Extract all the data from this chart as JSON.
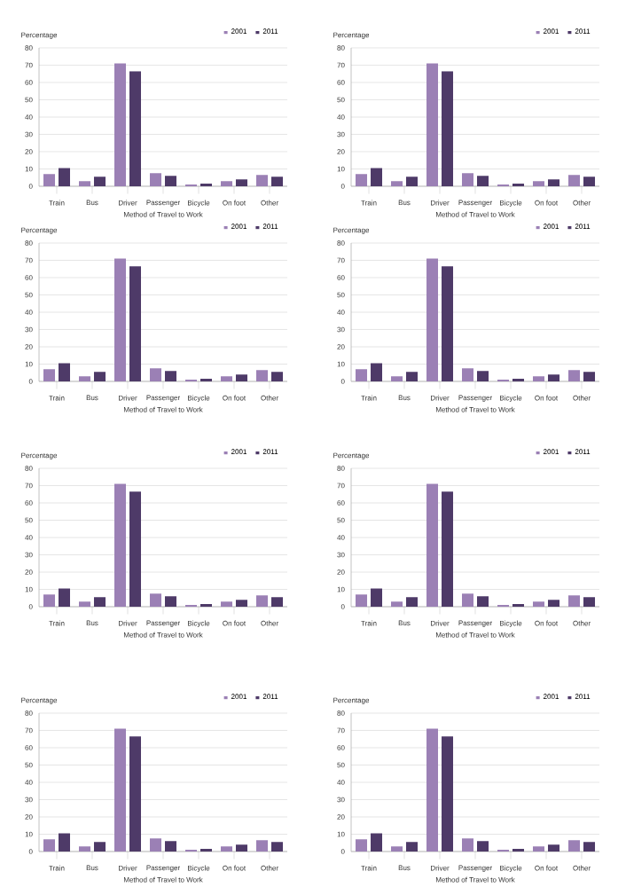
{
  "chart_data": [
    {
      "type": "bar",
      "ylabel": "Percentage",
      "xlabel": "Method of Travel to Work",
      "categories": [
        "Train",
        "Bus",
        "Driver",
        "Passenger",
        "Bicycle",
        "On foot",
        "Other"
      ],
      "series": [
        {
          "name": "2001",
          "color": "#9b80b5",
          "values": [
            7,
            3,
            71,
            7.5,
            1,
            3,
            6.5
          ]
        },
        {
          "name": "2011",
          "color": "#4e3a68",
          "values": [
            10.5,
            5.5,
            66.5,
            6,
            1.5,
            4,
            5.5
          ]
        }
      ],
      "ylim": [
        0,
        80
      ],
      "yticks": [
        0,
        10,
        20,
        30,
        40,
        50,
        60,
        70,
        80
      ],
      "grid": "y",
      "legend": "top right"
    },
    {
      "type": "bar",
      "ylabel": "Percentage",
      "xlabel": "Method of Travel to Work",
      "categories": [
        "Train",
        "Bus",
        "Driver",
        "Passenger",
        "Bicycle",
        "On foot",
        "Other"
      ],
      "series": [
        {
          "name": "2001",
          "color": "#9b80b5",
          "values": [
            7,
            3,
            71,
            7.5,
            1,
            3,
            6.5
          ]
        },
        {
          "name": "2011",
          "color": "#4e3a68",
          "values": [
            10.5,
            5.5,
            66.5,
            6,
            1.5,
            4,
            5.5
          ]
        }
      ],
      "ylim": [
        0,
        80
      ],
      "yticks": [
        0,
        10,
        20,
        30,
        40,
        50,
        60,
        70,
        80
      ],
      "grid": "y",
      "legend": "top right"
    },
    {
      "type": "bar",
      "ylabel": "Percentage",
      "xlabel": "Method of Travel to Work",
      "categories": [
        "Train",
        "Bus",
        "Driver",
        "Passenger",
        "Bicycle",
        "On foot",
        "Other"
      ],
      "series": [
        {
          "name": "2001",
          "color": "#9b80b5",
          "values": [
            7,
            3,
            71,
            7.5,
            1,
            3,
            6.5
          ]
        },
        {
          "name": "2011",
          "color": "#4e3a68",
          "values": [
            10.5,
            5.5,
            66.5,
            6,
            1.5,
            4,
            5.5
          ]
        }
      ],
      "ylim": [
        0,
        80
      ],
      "yticks": [
        0,
        10,
        20,
        30,
        40,
        50,
        60,
        70,
        80
      ],
      "grid": "y",
      "legend": "top right"
    },
    {
      "type": "bar",
      "ylabel": "Percentage",
      "xlabel": "Method of Travel to Work",
      "categories": [
        "Train",
        "Bus",
        "Driver",
        "Passenger",
        "Bicycle",
        "On foot",
        "Other"
      ],
      "series": [
        {
          "name": "2001",
          "color": "#9b80b5",
          "values": [
            7,
            3,
            71,
            7.5,
            1,
            3,
            6.5
          ]
        },
        {
          "name": "2011",
          "color": "#4e3a68",
          "values": [
            10.5,
            5.5,
            66.5,
            6,
            1.5,
            4,
            5.5
          ]
        }
      ],
      "ylim": [
        0,
        80
      ],
      "yticks": [
        0,
        10,
        20,
        30,
        40,
        50,
        60,
        70,
        80
      ],
      "grid": "y",
      "legend": "top right"
    },
    {
      "type": "bar",
      "ylabel": "Percentage",
      "xlabel": "Method of Travel to Work",
      "categories": [
        "Train",
        "Bus",
        "Driver",
        "Passenger",
        "Bicycle",
        "On foot",
        "Other"
      ],
      "series": [
        {
          "name": "2001",
          "color": "#9b80b5",
          "values": [
            7,
            3,
            71,
            7.5,
            1,
            3,
            6.5
          ]
        },
        {
          "name": "2011",
          "color": "#4e3a68",
          "values": [
            10.5,
            5.5,
            66.5,
            6,
            1.5,
            4,
            5.5
          ]
        }
      ],
      "ylim": [
        0,
        80
      ],
      "yticks": [
        0,
        10,
        20,
        30,
        40,
        50,
        60,
        70,
        80
      ],
      "grid": "y",
      "legend": "top right"
    },
    {
      "type": "bar",
      "ylabel": "Percentage",
      "xlabel": "Method of Travel to Work",
      "categories": [
        "Train",
        "Bus",
        "Driver",
        "Passenger",
        "Bicycle",
        "On foot",
        "Other"
      ],
      "series": [
        {
          "name": "2001",
          "color": "#9b80b5",
          "values": [
            7,
            3,
            71,
            7.5,
            1,
            3,
            6.5
          ]
        },
        {
          "name": "2011",
          "color": "#4e3a68",
          "values": [
            10.5,
            5.5,
            66.5,
            6,
            1.5,
            4,
            5.5
          ]
        }
      ],
      "ylim": [
        0,
        80
      ],
      "yticks": [
        0,
        10,
        20,
        30,
        40,
        50,
        60,
        70,
        80
      ],
      "grid": "y",
      "legend": "top right"
    },
    {
      "type": "bar",
      "ylabel": "Percentage",
      "xlabel": "Method of Travel to Work",
      "categories": [
        "Train",
        "Bus",
        "Driver",
        "Passenger",
        "Bicycle",
        "On foot",
        "Other"
      ],
      "series": [
        {
          "name": "2001",
          "color": "#9b80b5",
          "values": [
            7,
            3,
            71,
            7.5,
            1,
            3,
            6.5
          ]
        },
        {
          "name": "2011",
          "color": "#4e3a68",
          "values": [
            10.5,
            5.5,
            66.5,
            6,
            1.5,
            4,
            5.5
          ]
        }
      ],
      "ylim": [
        0,
        80
      ],
      "yticks": [
        0,
        10,
        20,
        30,
        40,
        50,
        60,
        70,
        80
      ],
      "grid": "y",
      "legend": "top right"
    },
    {
      "type": "bar",
      "ylabel": "Percentage",
      "xlabel": "Method of Travel to Work",
      "categories": [
        "Train",
        "Bus",
        "Driver",
        "Passenger",
        "Bicycle",
        "On foot",
        "Other"
      ],
      "series": [
        {
          "name": "2001",
          "color": "#9b80b5",
          "values": [
            7,
            3,
            71,
            7.5,
            1,
            3,
            6.5
          ]
        },
        {
          "name": "2011",
          "color": "#4e3a68",
          "values": [
            10.5,
            5.5,
            66.5,
            6,
            1.5,
            4,
            5.5
          ]
        }
      ],
      "ylim": [
        0,
        80
      ],
      "yticks": [
        0,
        10,
        20,
        30,
        40,
        50,
        60,
        70,
        80
      ],
      "grid": "y",
      "legend": "top right"
    }
  ]
}
